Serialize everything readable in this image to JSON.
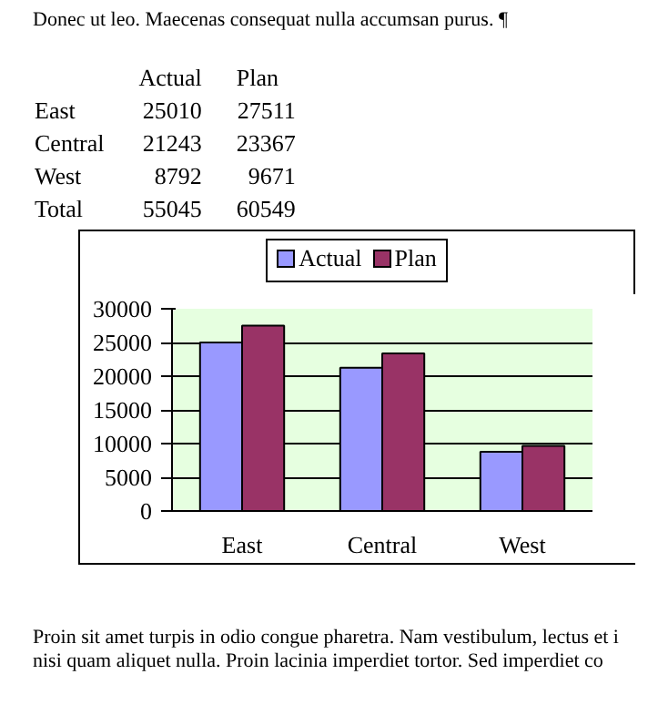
{
  "chart_data": [
    {
      "type": "other",
      "categories": [
        "East",
        "Central",
        "West",
        "Total"
      ],
      "series": [
        {
          "name": "Actual",
          "values": [
            25010,
            21243,
            8792,
            55045
          ]
        },
        {
          "name": "Plan",
          "values": [
            27511,
            23367,
            9671,
            60549
          ]
        }
      ],
      "data_labels": true,
      "annotations": [
        "Donec ut leo. Maecenas consequat nulla accumsan purus. ¶"
      ]
    },
    {
      "type": "bar",
      "categories": [
        "East",
        "Central",
        "West"
      ],
      "series": [
        {
          "name": "Actual",
          "color": "#9999ff",
          "values": [
            25010,
            21243,
            8792
          ]
        },
        {
          "name": "Plan",
          "color": "#993366",
          "values": [
            27511,
            23367,
            9671
          ]
        }
      ],
      "ylim": [
        0,
        30000
      ],
      "yticks": [
        0,
        5000,
        10000,
        15000,
        20000,
        25000,
        30000
      ],
      "grid": "y",
      "legend": "top",
      "annotations": [
        "Proin sit amet turpis in odio congue pharetra. Nam vestibulum, lectus et i",
        "nisi quam aliquet nulla. Proin lacinia imperdiet tortor. Sed imperdiet co"
      ]
    }
  ]
}
